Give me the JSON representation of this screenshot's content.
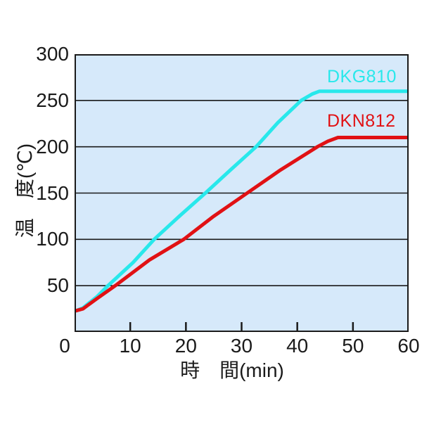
{
  "figure": {
    "background": "#ffffff",
    "text_color": "#1a1a1a"
  },
  "chart_data": {
    "type": "line",
    "title": "",
    "xlabel": "時　間(min)",
    "ylabel": "温　度(℃)",
    "xlim": [
      0,
      60
    ],
    "ylim": [
      0,
      300
    ],
    "x_ticks": [
      0,
      10,
      20,
      30,
      40,
      50,
      60
    ],
    "y_ticks": [
      50,
      100,
      150,
      200,
      250,
      300
    ],
    "grid": "horizontal lines every 50 degrees, black, on light blue plot background",
    "plot_bg": "#D6E9FA",
    "axis_color": "#1a1a1a",
    "legend_position": "inline text labels above each line near right side",
    "series": [
      {
        "name": "DKG810",
        "color": "#28E8EB",
        "points": [
          [
            0.3,
            23
          ],
          [
            1.5,
            26
          ],
          [
            4,
            38
          ],
          [
            6,
            50
          ],
          [
            10.5,
            75
          ],
          [
            14.3,
            100
          ],
          [
            19,
            126
          ],
          [
            23.5,
            150
          ],
          [
            28,
            175
          ],
          [
            32.6,
            200
          ],
          [
            36.5,
            226
          ],
          [
            40.7,
            250
          ],
          [
            42.7,
            257
          ],
          [
            44,
            260
          ],
          [
            60,
            260
          ]
        ]
      },
      {
        "name": "DKN812",
        "color": "#E11114",
        "points": [
          [
            0.3,
            23
          ],
          [
            1.5,
            25
          ],
          [
            4,
            36
          ],
          [
            7.3,
            50
          ],
          [
            13.5,
            78
          ],
          [
            19.6,
            100
          ],
          [
            25,
            125
          ],
          [
            31,
            150
          ],
          [
            37,
            175
          ],
          [
            43.6,
            200
          ],
          [
            45.5,
            206
          ],
          [
            47.3,
            210
          ],
          [
            60,
            210
          ]
        ]
      }
    ]
  }
}
